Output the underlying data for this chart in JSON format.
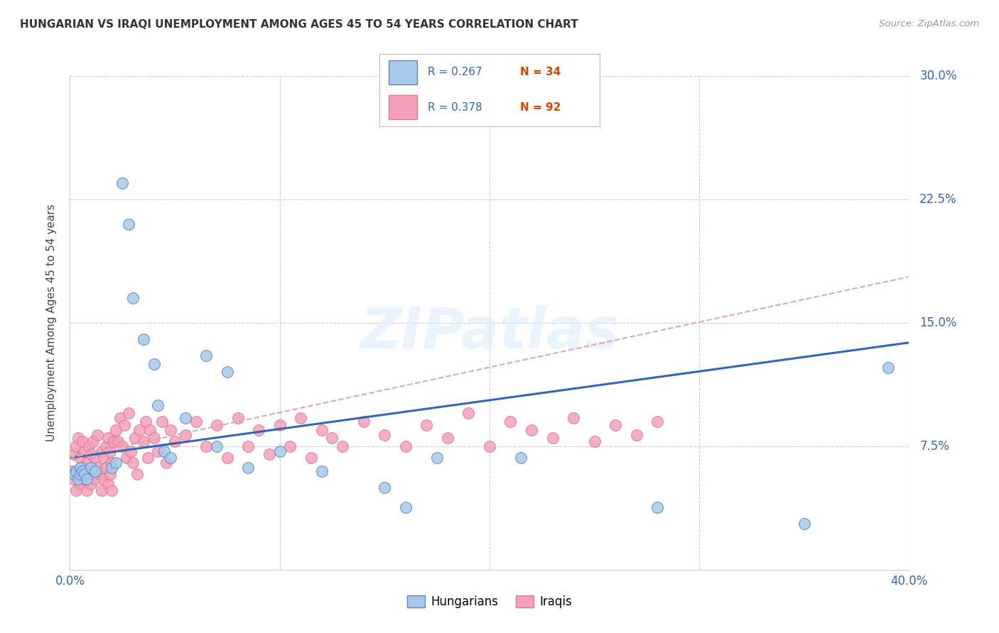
{
  "title": "HUNGARIAN VS IRAQI UNEMPLOYMENT AMONG AGES 45 TO 54 YEARS CORRELATION CHART",
  "source": "Source: ZipAtlas.com",
  "ylabel": "Unemployment Among Ages 45 to 54 years",
  "xlim": [
    0.0,
    0.4
  ],
  "ylim": [
    0.0,
    0.3
  ],
  "xticks": [
    0.0,
    0.1,
    0.2,
    0.3,
    0.4
  ],
  "xticklabels": [
    "0.0%",
    "",
    "",
    "",
    "40.0%"
  ],
  "yticks": [
    0.0,
    0.075,
    0.15,
    0.225,
    0.3
  ],
  "yticklabels_right": [
    "",
    "7.5%",
    "15.0%",
    "22.5%",
    "30.0%"
  ],
  "hungarian_color": "#a8c8e8",
  "iraqi_color": "#f4a0b8",
  "hungarian_edge": "#5588cc",
  "iraqi_edge": "#dd7799",
  "trend_hungarian_color": "#3366bb",
  "trend_iraqi_color": "#ddaaaa",
  "watermark_text": "ZIPatlas",
  "legend_R_color": "#3366bb",
  "legend_N_color": "#dd4400",
  "hun_trend_x0": 0.0,
  "hun_trend_x1": 0.4,
  "hun_trend_y0": 0.068,
  "hun_trend_y1": 0.138,
  "iq_trend_x0": 0.0,
  "iq_trend_x1": 0.4,
  "iq_trend_y0": 0.068,
  "iq_trend_y1": 0.178,
  "hungarian_x": [
    0.002,
    0.003,
    0.004,
    0.005,
    0.005,
    0.006,
    0.007,
    0.008,
    0.01,
    0.012,
    0.02,
    0.022,
    0.025,
    0.028,
    0.03,
    0.035,
    0.04,
    0.042,
    0.045,
    0.048,
    0.055,
    0.065,
    0.07,
    0.075,
    0.085,
    0.1,
    0.12,
    0.15,
    0.16,
    0.175,
    0.215,
    0.28,
    0.35,
    0.39
  ],
  "hungarian_y": [
    0.058,
    0.06,
    0.055,
    0.062,
    0.058,
    0.06,
    0.058,
    0.055,
    0.062,
    0.06,
    0.062,
    0.065,
    0.235,
    0.21,
    0.165,
    0.14,
    0.125,
    0.1,
    0.072,
    0.068,
    0.092,
    0.13,
    0.075,
    0.12,
    0.062,
    0.072,
    0.06,
    0.05,
    0.038,
    0.068,
    0.068,
    0.038,
    0.028,
    0.123
  ],
  "iraqi_x": [
    0.001,
    0.002,
    0.002,
    0.003,
    0.003,
    0.004,
    0.004,
    0.005,
    0.005,
    0.006,
    0.006,
    0.007,
    0.007,
    0.008,
    0.008,
    0.009,
    0.009,
    0.01,
    0.01,
    0.011,
    0.011,
    0.012,
    0.012,
    0.013,
    0.013,
    0.014,
    0.015,
    0.015,
    0.016,
    0.016,
    0.017,
    0.017,
    0.018,
    0.018,
    0.019,
    0.019,
    0.02,
    0.02,
    0.021,
    0.022,
    0.023,
    0.024,
    0.025,
    0.026,
    0.027,
    0.028,
    0.029,
    0.03,
    0.031,
    0.032,
    0.033,
    0.035,
    0.036,
    0.037,
    0.038,
    0.04,
    0.042,
    0.044,
    0.046,
    0.048,
    0.05,
    0.055,
    0.06,
    0.065,
    0.07,
    0.075,
    0.08,
    0.085,
    0.09,
    0.095,
    0.1,
    0.105,
    0.11,
    0.115,
    0.12,
    0.125,
    0.13,
    0.14,
    0.15,
    0.16,
    0.17,
    0.18,
    0.19,
    0.2,
    0.21,
    0.22,
    0.23,
    0.24,
    0.25,
    0.26,
    0.27,
    0.28
  ],
  "iraqi_y": [
    0.06,
    0.055,
    0.07,
    0.048,
    0.075,
    0.058,
    0.08,
    0.052,
    0.068,
    0.062,
    0.078,
    0.055,
    0.072,
    0.048,
    0.065,
    0.058,
    0.075,
    0.052,
    0.07,
    0.06,
    0.078,
    0.055,
    0.068,
    0.062,
    0.082,
    0.058,
    0.072,
    0.048,
    0.068,
    0.055,
    0.075,
    0.062,
    0.08,
    0.052,
    0.072,
    0.058,
    0.065,
    0.048,
    0.078,
    0.085,
    0.078,
    0.092,
    0.075,
    0.088,
    0.068,
    0.095,
    0.072,
    0.065,
    0.08,
    0.058,
    0.085,
    0.078,
    0.09,
    0.068,
    0.085,
    0.08,
    0.072,
    0.09,
    0.065,
    0.085,
    0.078,
    0.082,
    0.09,
    0.075,
    0.088,
    0.068,
    0.092,
    0.075,
    0.085,
    0.07,
    0.088,
    0.075,
    0.092,
    0.068,
    0.085,
    0.08,
    0.075,
    0.09,
    0.082,
    0.075,
    0.088,
    0.08,
    0.095,
    0.075,
    0.09,
    0.085,
    0.08,
    0.092,
    0.078,
    0.088,
    0.082,
    0.09
  ]
}
